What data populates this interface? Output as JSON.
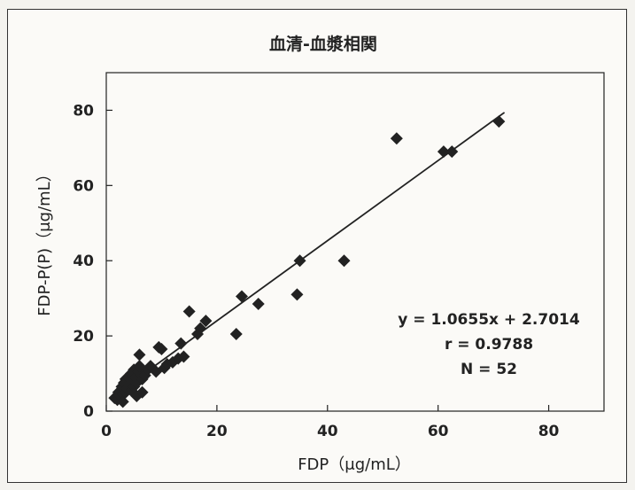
{
  "chart_data": {
    "type": "scatter",
    "title": "血清-血漿相関",
    "xlabel": "FDP（μg/mL）",
    "ylabel": "FDP-P(P)（μg/mL）",
    "xlim": [
      0,
      90
    ],
    "ylim": [
      0,
      90
    ],
    "xticks": [
      "0",
      "20",
      "40",
      "60",
      "80"
    ],
    "yticks": [
      "0",
      "20",
      "40",
      "60",
      "80"
    ],
    "grid": false,
    "marker": "diamond",
    "color": "#222222",
    "points": [
      [
        1.5,
        3.5
      ],
      [
        2.0,
        3.0
      ],
      [
        2.2,
        5.0
      ],
      [
        2.5,
        4.0
      ],
      [
        2.8,
        6.5
      ],
      [
        3.0,
        4.5
      ],
      [
        3.2,
        7.5
      ],
      [
        3.5,
        5.0
      ],
      [
        3.5,
        8.5
      ],
      [
        3.8,
        6.0
      ],
      [
        4.0,
        9.0
      ],
      [
        4.2,
        7.0
      ],
      [
        4.5,
        5.5
      ],
      [
        4.5,
        10.0
      ],
      [
        4.8,
        8.0
      ],
      [
        5.0,
        6.5
      ],
      [
        5.0,
        11.0
      ],
      [
        5.3,
        9.0
      ],
      [
        5.5,
        4.0
      ],
      [
        5.5,
        7.5
      ],
      [
        5.8,
        10.5
      ],
      [
        6.0,
        12.0
      ],
      [
        6.0,
        15.0
      ],
      [
        6.5,
        8.5
      ],
      [
        6.5,
        5.0
      ],
      [
        7.0,
        9.5
      ],
      [
        7.5,
        11.0
      ],
      [
        8.0,
        12.0
      ],
      [
        9.0,
        10.5
      ],
      [
        9.5,
        17.0
      ],
      [
        10.0,
        16.5
      ],
      [
        10.5,
        11.5
      ],
      [
        11.0,
        12.5
      ],
      [
        12.0,
        13.0
      ],
      [
        13.0,
        14.0
      ],
      [
        13.5,
        18.0
      ],
      [
        14.0,
        14.5
      ],
      [
        15.0,
        26.5
      ],
      [
        16.5,
        20.5
      ],
      [
        17.0,
        22.0
      ],
      [
        18.0,
        24.0
      ],
      [
        23.5,
        20.5
      ],
      [
        24.5,
        30.5
      ],
      [
        27.5,
        28.5
      ],
      [
        34.5,
        31.0
      ],
      [
        35.0,
        40.0
      ],
      [
        43.0,
        40.0
      ],
      [
        52.5,
        72.5
      ],
      [
        61.0,
        69.0
      ],
      [
        62.5,
        69.0
      ],
      [
        71.0,
        77.0
      ],
      [
        3.0,
        2.5
      ]
    ],
    "trendline": {
      "slope": 1.0655,
      "intercept": 2.7014
    },
    "annotations": [
      "y = 1.0655x + 2.7014",
      "r = 0.9788",
      "N = 52"
    ]
  }
}
